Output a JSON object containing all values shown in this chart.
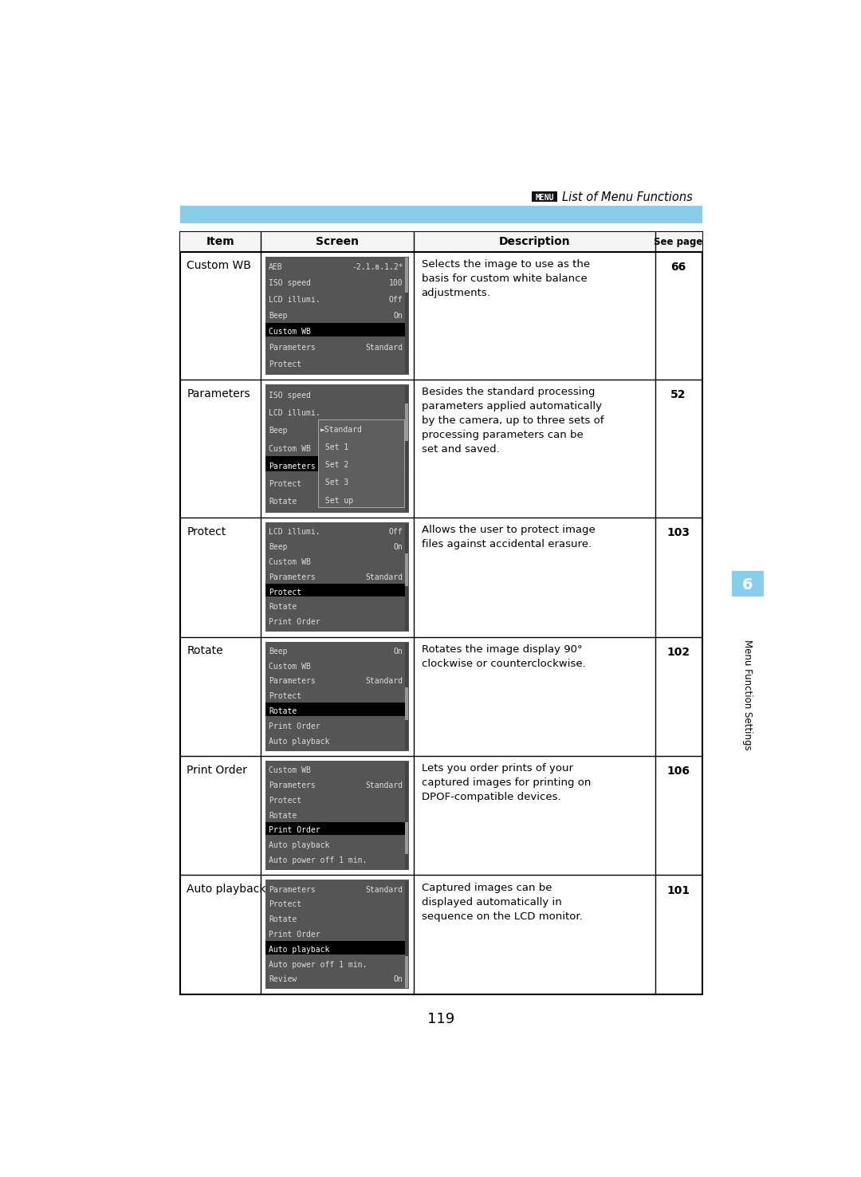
{
  "page_number": "119",
  "header_text": "List of Menu Functions",
  "menu_label": "MENU",
  "blue_bar_color": "#87CEEB",
  "section_label": "6",
  "section_title": "Menu Function Settings",
  "table_header": [
    "Item",
    "Screen",
    "Description",
    "See page"
  ],
  "rows": [
    {
      "item": "Custom WB",
      "screen_lines": [
        [
          "AEB",
          "-2.1.в.1.2*"
        ],
        [
          "ISO speed",
          "100"
        ],
        [
          "LCD illumi.",
          "Off"
        ],
        [
          "Beep",
          "On"
        ],
        [
          "Custom WB",
          ""
        ],
        [
          "Parameters",
          "Standard"
        ],
        [
          "Protect",
          ""
        ]
      ],
      "highlight_line": 4,
      "submenu": null,
      "description": "Selects the image to use as the\nbasis for custom white balance\nadjustments.",
      "see_page": "66"
    },
    {
      "item": "Parameters",
      "screen_lines": [
        [
          "ISO speed",
          ""
        ],
        [
          "LCD illumi.",
          ""
        ],
        [
          "Beep",
          ""
        ],
        [
          "Custom WB",
          ""
        ],
        [
          "Parameters",
          ""
        ],
        [
          "Protect",
          ""
        ],
        [
          "Rotate",
          ""
        ]
      ],
      "highlight_line": 4,
      "submenu": {
        "lines": [
          "Standard",
          "Set 1",
          "Set 2",
          "Set 3",
          "Set up"
        ],
        "arrow_line": 0,
        "highlight_line": -1
      },
      "description": "Besides the standard processing\nparameters applied automatically\nby the camera, up to three sets of\nprocessing parameters can be\nset and saved.",
      "see_page": "52"
    },
    {
      "item": "Protect",
      "screen_lines": [
        [
          "LCD illumi.",
          "Off"
        ],
        [
          "Beep",
          "On"
        ],
        [
          "Custom WB",
          ""
        ],
        [
          "Parameters",
          "Standard"
        ],
        [
          "Protect",
          ""
        ],
        [
          "Rotate",
          ""
        ],
        [
          "Print Order",
          ""
        ]
      ],
      "highlight_line": 4,
      "submenu": null,
      "description": "Allows the user to protect image\nfiles against accidental erasure.",
      "see_page": "103"
    },
    {
      "item": "Rotate",
      "screen_lines": [
        [
          "Beep",
          "On"
        ],
        [
          "Custom WB",
          ""
        ],
        [
          "Parameters",
          "Standard"
        ],
        [
          "Protect",
          ""
        ],
        [
          "Rotate",
          ""
        ],
        [
          "Print Order",
          ""
        ],
        [
          "Auto playback",
          ""
        ]
      ],
      "highlight_line": 4,
      "submenu": null,
      "description": "Rotates the image display 90°\nclockwise or counterclockwise.",
      "see_page": "102"
    },
    {
      "item": "Print Order",
      "screen_lines": [
        [
          "Custom WB",
          ""
        ],
        [
          "Parameters",
          "Standard"
        ],
        [
          "Protect",
          ""
        ],
        [
          "Rotate",
          ""
        ],
        [
          "Print Order",
          ""
        ],
        [
          "Auto playback",
          ""
        ],
        [
          "Auto power off 1 min.",
          ""
        ]
      ],
      "highlight_line": 4,
      "submenu": null,
      "description": "Lets you order prints of your\ncaptured images for printing on\nDPOF-compatible devices.",
      "see_page": "106"
    },
    {
      "item": "Auto playback",
      "screen_lines": [
        [
          "Parameters",
          "Standard"
        ],
        [
          "Protect",
          ""
        ],
        [
          "Rotate",
          ""
        ],
        [
          "Print Order",
          ""
        ],
        [
          "Auto playback",
          ""
        ],
        [
          "Auto power off 1 min.",
          ""
        ],
        [
          "Review",
          "On"
        ]
      ],
      "highlight_line": 4,
      "submenu": null,
      "description": "Captured images can be\ndisplayed automatically in\nsequence on the LCD monitor.",
      "see_page": "101"
    }
  ],
  "bg_color": "#ffffff",
  "screen_bg": "#555555",
  "screen_highlight": "#000000",
  "screen_text_color": "#dddddd",
  "screen_text_dim": "#aaaaaa",
  "submenu_bg": "#666666",
  "submenu_border": "#999999"
}
